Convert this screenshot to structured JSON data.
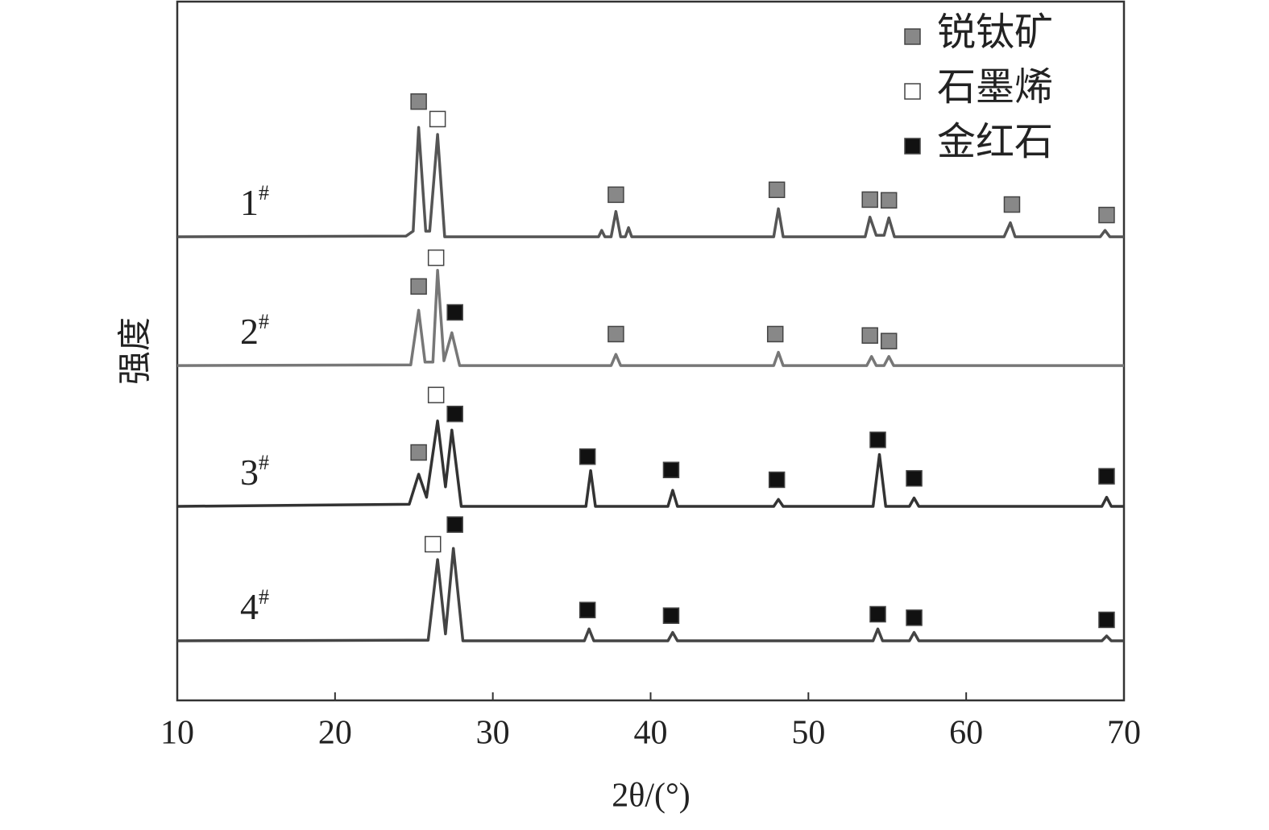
{
  "chart_data": {
    "type": "line",
    "x_label": "2θ/(°)",
    "y_label": "强度",
    "xlim": [
      10,
      70
    ],
    "xticks": [
      10,
      20,
      30,
      40,
      50,
      60,
      70
    ],
    "ylim": [
      0,
      100
    ],
    "series": [
      {
        "name": "1#",
        "color": "#555555",
        "x": [
          10,
          24.5,
          24.95,
          25.3,
          25.75,
          26.0,
          26.5,
          26.95,
          36.7,
          36.9,
          37.1,
          37.5,
          37.8,
          38.1,
          38.4,
          38.6,
          38.8,
          47.8,
          48.1,
          48.4,
          53.6,
          53.9,
          54.3,
          54.8,
          55.1,
          55.45,
          62.4,
          62.8,
          63.1,
          68.5,
          68.8,
          69.1,
          70
        ],
        "y": [
          66.2,
          66.3,
          67,
          81.8,
          67,
          67,
          80.8,
          66.2,
          66.2,
          67.1,
          66.2,
          66.2,
          69.8,
          66.2,
          66.2,
          67.5,
          66.2,
          66.2,
          70.2,
          66.2,
          66.2,
          69,
          66.4,
          66.4,
          68.9,
          66.2,
          66.2,
          68.2,
          66.2,
          66.2,
          67.1,
          66.2,
          66.2
        ]
      },
      {
        "name": "2#",
        "color": "#777777",
        "x": [
          10,
          24.8,
          25.3,
          25.7,
          26.2,
          26.5,
          26.9,
          27.4,
          27.9,
          37.5,
          37.8,
          38.1,
          47.8,
          48.1,
          48.4,
          53.7,
          54.0,
          54.3,
          54.8,
          55.1,
          55.4,
          70
        ],
        "y": [
          47.8,
          47.9,
          55.7,
          48.3,
          48.3,
          61.4,
          48.5,
          52.5,
          47.8,
          47.8,
          49.4,
          47.8,
          47.8,
          49.7,
          47.8,
          47.8,
          49.1,
          47.8,
          47.8,
          49.1,
          47.8,
          47.8
        ]
      },
      {
        "name": "3#",
        "color": "#333333",
        "x": [
          10,
          24.7,
          25.3,
          25.8,
          26.5,
          27.0,
          27.4,
          28.0,
          35.9,
          36.2,
          36.5,
          41.1,
          41.4,
          41.7,
          47.8,
          48.1,
          48.4,
          54.1,
          54.5,
          54.9,
          56.4,
          56.7,
          57.0,
          68.6,
          68.9,
          69.2,
          70
        ],
        "y": [
          27.7,
          28,
          32.3,
          29,
          39.9,
          30.5,
          38.6,
          27.7,
          27.7,
          32.8,
          27.7,
          27.7,
          30,
          27.7,
          27.7,
          28.7,
          27.7,
          27.7,
          35.1,
          27.7,
          27.7,
          28.9,
          27.7,
          27.7,
          29,
          27.7,
          27.7
        ]
      },
      {
        "name": "4#",
        "color": "#444444",
        "x": [
          10,
          25.9,
          26.5,
          27.0,
          27.5,
          28.1,
          35.8,
          36.1,
          36.4,
          41.1,
          41.4,
          41.7,
          54.1,
          54.4,
          54.7,
          56.4,
          56.7,
          57.0,
          68.6,
          68.9,
          69.2,
          70
        ],
        "y": [
          8.5,
          8.6,
          20.1,
          9.5,
          21.7,
          8.5,
          8.5,
          10.2,
          8.5,
          8.5,
          9.7,
          8.5,
          8.5,
          10.2,
          8.5,
          8.5,
          9.7,
          8.5,
          8.5,
          9.2,
          8.5,
          8.5
        ]
      }
    ],
    "phases": [
      {
        "name": "锐钛矿",
        "color": "#888888",
        "x": [
          25.3,
          37.8,
          48.0,
          53.9,
          55.1,
          62.9,
          68.9,
          25.3,
          37.8,
          47.9,
          53.9,
          55.1,
          25.3
        ],
        "y": [
          85.5,
          72.2,
          72.9,
          71.5,
          71.4,
          70.8,
          69.3,
          59.1,
          52.3,
          52.3,
          52.1,
          51.3,
          35.4
        ]
      },
      {
        "name": "石墨烯",
        "color": "#ffffff",
        "x": [
          26.5,
          26.4,
          26.4,
          26.2
        ],
        "y": [
          83,
          63.2,
          43.6,
          22.3
        ]
      },
      {
        "name": "金红石",
        "color": "#111111",
        "x": [
          27.6,
          27.6,
          36.0,
          41.3,
          48.0,
          54.4,
          56.7,
          68.9,
          27.6,
          36.0,
          41.3,
          54.4,
          56.7,
          68.9
        ],
        "y": [
          55.4,
          40.9,
          34.8,
          32.9,
          31.5,
          37.2,
          31.7,
          32,
          25.1,
          12.9,
          12.1,
          12.3,
          11.8,
          11.5
        ]
      }
    ]
  }
}
